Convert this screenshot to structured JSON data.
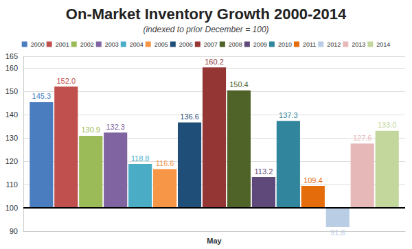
{
  "chart_data": {
    "type": "bar",
    "title": "On-Market Inventory Growth 2000-2014",
    "subtitle": "(indexed to prior December = 100)",
    "categories": [
      "May"
    ],
    "baseline": 100,
    "series": [
      {
        "name": "2000",
        "color": "#4a7dc0",
        "values": [
          145.3
        ],
        "value_labels": [
          "145.3"
        ]
      },
      {
        "name": "2001",
        "color": "#c0504d",
        "values": [
          152.0
        ],
        "value_labels": [
          "152.0"
        ]
      },
      {
        "name": "2002",
        "color": "#9bbb59",
        "values": [
          130.9
        ],
        "value_labels": [
          "130.9"
        ]
      },
      {
        "name": "2003",
        "color": "#8064a2",
        "values": [
          132.3
        ],
        "value_labels": [
          "132.3"
        ]
      },
      {
        "name": "2004",
        "color": "#4bacc6",
        "values": [
          118.8
        ],
        "value_labels": [
          "118.8"
        ]
      },
      {
        "name": "2005",
        "color": "#f79646",
        "values": [
          116.6
        ],
        "value_labels": [
          "116.6"
        ]
      },
      {
        "name": "2006",
        "color": "#1f4e79",
        "values": [
          136.6
        ],
        "value_labels": [
          "136.6"
        ]
      },
      {
        "name": "2007",
        "color": "#943634",
        "values": [
          160.2
        ],
        "value_labels": [
          "160.2"
        ]
      },
      {
        "name": "2008",
        "color": "#4f6228",
        "values": [
          150.4
        ],
        "value_labels": [
          "150.4"
        ]
      },
      {
        "name": "2009",
        "color": "#5f497a",
        "values": [
          113.2
        ],
        "value_labels": [
          "113.2"
        ]
      },
      {
        "name": "2010",
        "color": "#31859c",
        "values": [
          137.3
        ],
        "value_labels": [
          "137.3"
        ]
      },
      {
        "name": "2011",
        "color": "#e46c0a",
        "values": [
          109.4
        ],
        "value_labels": [
          "109.4"
        ]
      },
      {
        "name": "2012",
        "color": "#b9cde5",
        "values": [
          91.8
        ],
        "value_labels": [
          "91.8"
        ]
      },
      {
        "name": "2013",
        "color": "#e6b9b8",
        "values": [
          127.6
        ],
        "value_labels": [
          "127.6"
        ]
      },
      {
        "name": "2014",
        "color": "#c3d69b",
        "values": [
          133.0
        ],
        "value_labels": [
          "133.0"
        ]
      }
    ],
    "ylim": [
      90,
      165
    ],
    "yticks": [
      90,
      100,
      110,
      120,
      130,
      140,
      150,
      160
    ],
    "grid": true,
    "legend": "top",
    "data_labels": true
  }
}
